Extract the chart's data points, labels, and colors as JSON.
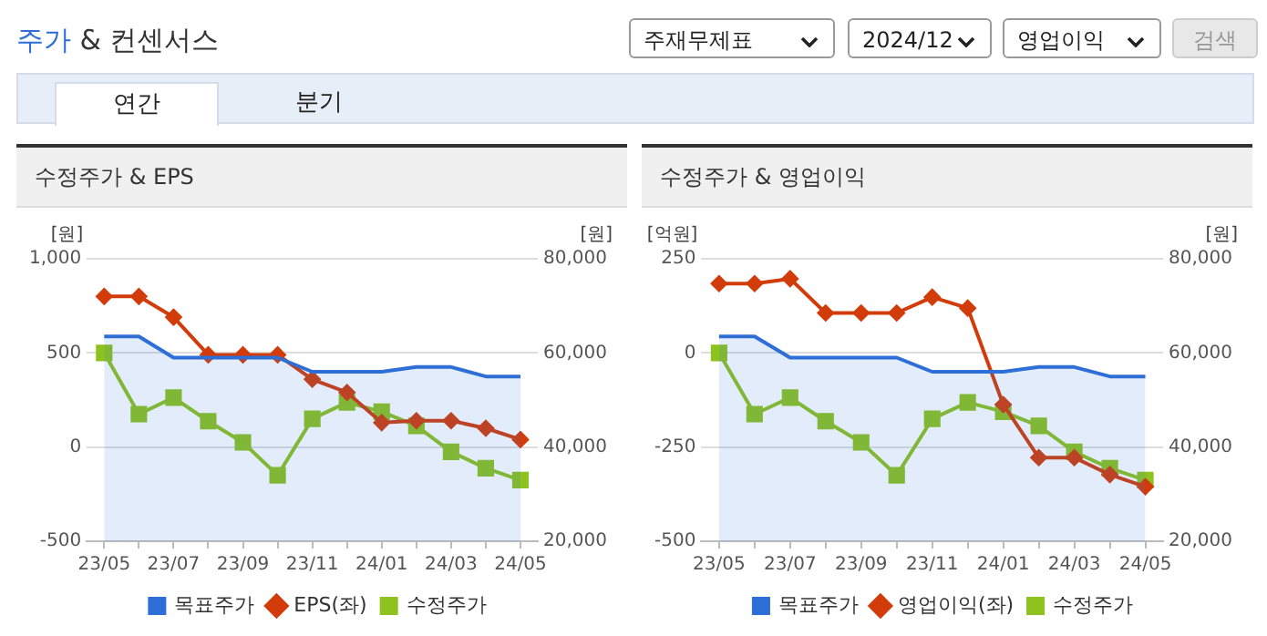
{
  "chart_data": [
    {
      "type": "line",
      "title": "수정주가 & EPS",
      "ylabel": "[원]",
      "y2label": "[원]",
      "categories": [
        "23/05",
        null,
        "23/07",
        null,
        "23/09",
        null,
        "23/11",
        null,
        "24/01",
        null,
        "24/03",
        null,
        "24/05"
      ],
      "series": [
        {
          "name": "목표주가",
          "type": "area",
          "axis": "y2",
          "color": "#2d6fd6",
          "marker": "none",
          "values": [
            63500,
            63500,
            59000,
            59000,
            59000,
            59000,
            56000,
            56000,
            56000,
            57000,
            57000,
            55000,
            55000
          ]
        },
        {
          "name": "EPS(좌)",
          "type": "line",
          "color": "#d23c0a",
          "marker": "diamond",
          "values": [
            800,
            800,
            690,
            490,
            490,
            490,
            360,
            290,
            130,
            140,
            140,
            100,
            40
          ]
        },
        {
          "name": "수정주가",
          "type": "line",
          "axis": "y2",
          "color": "#8dc21f",
          "marker": "square",
          "values": [
            60000,
            47000,
            50500,
            45500,
            41000,
            34000,
            46000,
            49500,
            47500,
            44500,
            39000,
            35500,
            33000
          ]
        }
      ],
      "ylim": [
        -500,
        1000
      ],
      "yticks": [
        -500,
        0,
        500,
        {
          "value": 1000,
          "label": "1,000"
        }
      ],
      "y2lim": [
        20000,
        80000
      ],
      "y2ticks": [
        {
          "value": 20000,
          "label": "20,000"
        },
        {
          "value": 40000,
          "label": "40,000"
        },
        {
          "value": 60000,
          "label": "60,000"
        },
        {
          "value": 80000,
          "label": "80,000"
        }
      ],
      "grid": "y",
      "legend": "bottom",
      "annotations": [
        "주가 & 컨센서스",
        "주재무제표",
        "2024/12",
        "영업이익",
        "검색",
        "연간",
        "분기"
      ]
    },
    {
      "type": "line",
      "title": "수정주가 & 영업이익",
      "ylabel": "[억원]",
      "y2label": "[원]",
      "categories": [
        "23/05",
        null,
        "23/07",
        null,
        "23/09",
        null,
        "23/11",
        null,
        "24/01",
        null,
        "24/03",
        null,
        "24/05"
      ],
      "series": [
        {
          "name": "목표주가",
          "type": "area",
          "axis": "y2",
          "color": "#2d6fd6",
          "marker": "none",
          "values": [
            63500,
            63500,
            59000,
            59000,
            59000,
            59000,
            56000,
            56000,
            56000,
            57000,
            57000,
            55000,
            55000
          ]
        },
        {
          "name": "영업이익(좌)",
          "type": "line",
          "color": "#d23c0a",
          "marker": "diamond",
          "values": [
            184,
            184,
            197,
            106,
            106,
            106,
            148,
            119,
            -137,
            -278,
            -278,
            -323,
            -355
          ]
        },
        {
          "name": "수정주가",
          "type": "line",
          "axis": "y2",
          "color": "#8dc21f",
          "marker": "square",
          "values": [
            60000,
            47000,
            50500,
            45500,
            41000,
            34000,
            46000,
            49500,
            47500,
            44500,
            39000,
            35500,
            33000
          ]
        }
      ],
      "ylim": [
        -500,
        250
      ],
      "yticks": [
        -500,
        -250,
        0,
        250
      ],
      "y2lim": [
        20000,
        80000
      ],
      "y2ticks": [
        {
          "value": 20000,
          "label": "20,000"
        },
        {
          "value": 40000,
          "label": "40,000"
        },
        {
          "value": 60000,
          "label": "60,000"
        },
        {
          "value": 80000,
          "label": "80,000"
        }
      ],
      "grid": "y",
      "legend": "bottom"
    }
  ]
}
